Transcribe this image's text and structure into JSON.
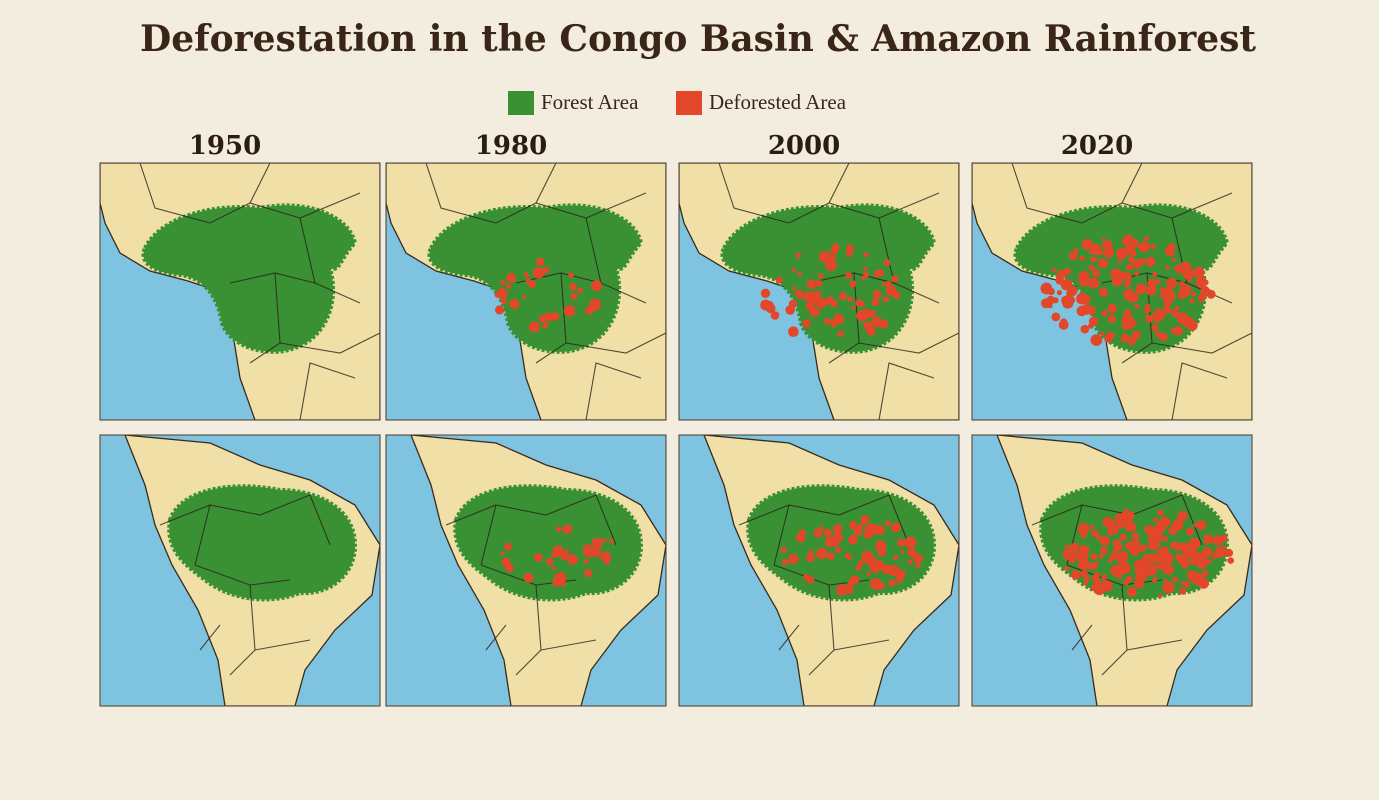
{
  "title": "Deforestation in the Congo Basin & Amazon Rainforest",
  "legend": [
    {
      "label": "Forest Area",
      "color": "#3a9134"
    },
    {
      "label": "Deforested Area",
      "color": "#e3472a"
    }
  ],
  "years": [
    "1950",
    "1980",
    "2000",
    "2020"
  ]
}
